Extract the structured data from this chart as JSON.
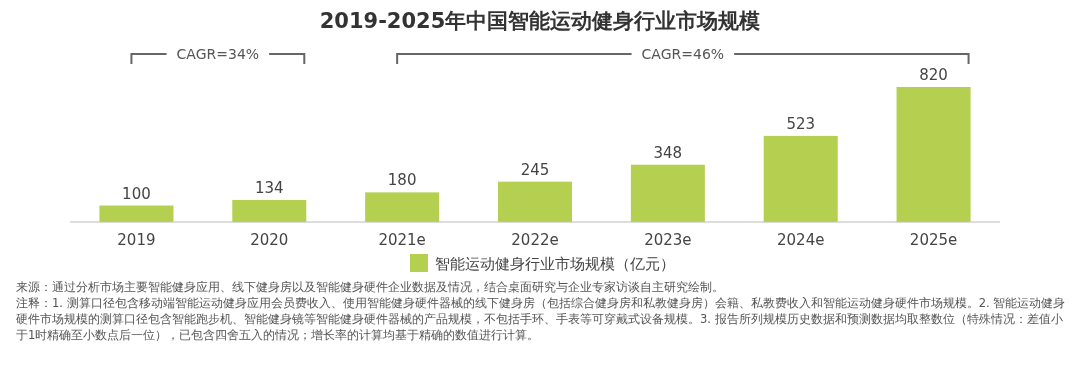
{
  "chart_data": {
    "type": "bar",
    "title": "2019-2025年中国智能运动健身行业市场规模",
    "categories": [
      "2019",
      "2020",
      "2021e",
      "2022e",
      "2023e",
      "2024e",
      "2025e"
    ],
    "series": [
      {
        "name": "智能运动健身行业市场规模（亿元）",
        "color": "#b5cf50",
        "values": [
          100,
          134,
          180,
          245,
          348,
          523,
          820
        ]
      }
    ],
    "data_labels": true,
    "legend": "bottom",
    "grid": false,
    "annotations": [
      "CAGR=34%",
      "CAGR=46%",
      "来源：通过分析市场主要智能健身应用、线下健身房以及智能健身硬件企业数据及情况，结合桌面研究与企业专家访谈自主研究绘制。",
      "注释：1. 测算口径包含移动端智能运动健身应用会员费收入、使用智能健身硬件器械的线下健身房（包括综合健身房和私教健身房）会籍、私教费收入和智能运动健身硬件市场规模。2. 智能运动健身硬件市场规模的测算口径包含智能跑步机、智能健身镜等智能健身硬件器械的产品规模，不包括手环、手表等可穿戴式设备规模。3. 报告所列规模历史数据和预测数据均取整数位（特殊情况：差值小于1时精确至小数点后一位），已包含四舍五入的情况；增长率的计算均基于精确的数值进行计算。"
    ]
  }
}
